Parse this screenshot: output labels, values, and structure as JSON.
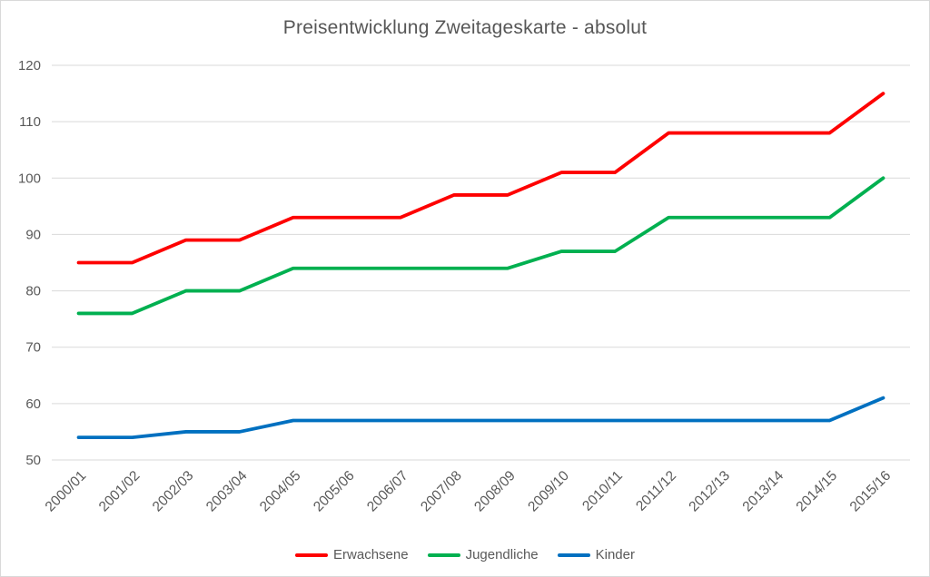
{
  "chart_data": {
    "type": "line",
    "title": "Preisentwicklung Zweitageskarte - absolut",
    "xlabel": "",
    "ylabel": "",
    "categories": [
      "2000/01",
      "2001/02",
      "2002/03",
      "2003/04",
      "2004/05",
      "2005/06",
      "2006/07",
      "2007/08",
      "2008/09",
      "2009/10",
      "2010/11",
      "2011/12",
      "2012/13",
      "2013/14",
      "2014/15",
      "2015/16"
    ],
    "series": [
      {
        "name": "Erwachsene",
        "color": "#fe0000",
        "values": [
          85,
          85,
          89,
          89,
          93,
          93,
          93,
          97,
          97,
          101,
          101,
          108,
          108,
          108,
          108,
          115
        ]
      },
      {
        "name": "Jugendliche",
        "color": "#00b050",
        "values": [
          76,
          76,
          80,
          80,
          84,
          84,
          84,
          84,
          84,
          87,
          87,
          93,
          93,
          93,
          93,
          100
        ]
      },
      {
        "name": "Kinder",
        "color": "#0070c0",
        "values": [
          54,
          54,
          55,
          55,
          57,
          57,
          57,
          57,
          57,
          57,
          57,
          57,
          57,
          57,
          57,
          61
        ]
      }
    ],
    "ylim": [
      50,
      120
    ],
    "ytick_step": 10,
    "grid": true,
    "legend_position": "bottom"
  },
  "colors": {
    "grid": "#d9d9d9",
    "border": "#d9d9d9",
    "axis_text": "#595959",
    "title_text": "#575757",
    "background": "#ffffff"
  }
}
